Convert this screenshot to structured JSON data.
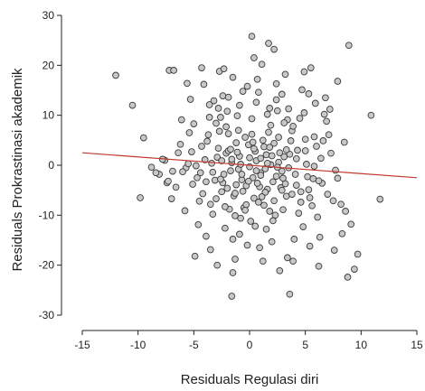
{
  "chart_data": {
    "type": "scatter",
    "title": "",
    "xlabel": "Residuals Regulasi diri",
    "ylabel": "Residuals Prokrastinasi akademik",
    "xlim": [
      -15,
      15
    ],
    "ylim": [
      -30,
      30
    ],
    "x_ticks": [
      "-15",
      "-10",
      "-5",
      "0",
      "5",
      "10",
      "15"
    ],
    "y_ticks": [
      "-30",
      "-20",
      "-10",
      "0",
      "10",
      "20",
      "30"
    ],
    "grid": false,
    "legend": "none",
    "point_fill": "#c8c8c8",
    "point_stroke": "#3a3a3a",
    "regression_line": {
      "x": [
        -15,
        15
      ],
      "y": [
        2.5,
        -2.5
      ],
      "color": "#c0392b"
    },
    "points": [
      [
        -12,
        18
      ],
      [
        -10.5,
        12
      ],
      [
        -9.5,
        5.5
      ],
      [
        -9.8,
        -6.5
      ],
      [
        -7.2,
        19
      ],
      [
        -6.8,
        19
      ],
      [
        -4.3,
        19.5
      ],
      [
        -2.7,
        18.8
      ],
      [
        -2.3,
        19.3
      ],
      [
        0.2,
        25.8
      ],
      [
        1.7,
        24.4
      ],
      [
        2.2,
        23.2
      ],
      [
        8.9,
        24
      ],
      [
        10.9,
        10
      ],
      [
        11.7,
        -6.8
      ],
      [
        -8.1,
        -1.8
      ],
      [
        -7.6,
        1
      ],
      [
        -7.4,
        -3.5
      ],
      [
        -6.9,
        -1.2
      ],
      [
        -6.4,
        2.5
      ],
      [
        -5.7,
        -0.5
      ],
      [
        -5.4,
        6.5
      ],
      [
        -5.1,
        -3.8
      ],
      [
        -4.9,
        -18.2
      ],
      [
        -4.6,
        -11.9
      ],
      [
        -4.1,
        16.2
      ],
      [
        -3.8,
        4.8
      ],
      [
        -3.5,
        -7.8
      ],
      [
        -3.2,
        12.9
      ],
      [
        -2.9,
        -20
      ],
      [
        -2.6,
        9.6
      ],
      [
        -2.4,
        -3.5
      ],
      [
        -2.1,
        2.4
      ],
      [
        -1.8,
        -8.8
      ],
      [
        -1.5,
        -14.8
      ],
      [
        -1.6,
        -26.2
      ],
      [
        -1.2,
        4.5
      ],
      [
        -1,
        7
      ],
      [
        -0.8,
        -10.6
      ],
      [
        -0.6,
        14.8
      ],
      [
        -0.3,
        -4.1
      ],
      [
        0,
        1.5
      ],
      [
        0.2,
        9.3
      ],
      [
        0.4,
        -6.6
      ],
      [
        0.7,
        17.2
      ],
      [
        1,
        -1.5
      ],
      [
        1.2,
        5
      ],
      [
        1.5,
        -12.8
      ],
      [
        1.8,
        11.4
      ],
      [
        2.1,
        -3.3
      ],
      [
        2.4,
        16.3
      ],
      [
        2.7,
        2.5
      ],
      [
        3,
        -8.9
      ],
      [
        3.2,
        18.2
      ],
      [
        3.5,
        -0.5
      ],
      [
        3.8,
        6.9
      ],
      [
        4,
        -14.8
      ],
      [
        3.6,
        -25.8
      ],
      [
        4.3,
        3
      ],
      [
        4.6,
        -5.3
      ],
      [
        4.9,
        10.5
      ],
      [
        5.2,
        -2.3
      ],
      [
        5.5,
        19.5
      ],
      [
        5.8,
        5.7
      ],
      [
        6.1,
        -10.4
      ],
      [
        6.4,
        1.4
      ],
      [
        6.7,
        10.2
      ],
      [
        7,
        -5.8
      ],
      [
        7.3,
        2.4
      ],
      [
        7.6,
        -17
      ],
      [
        7.9,
        16.8
      ],
      [
        8.2,
        -7.8
      ],
      [
        8.5,
        4.6
      ],
      [
        8.8,
        -22.4
      ],
      [
        9.1,
        -11.8
      ],
      [
        9.4,
        -20.8
      ],
      [
        9.7,
        -17.8
      ],
      [
        -5.3,
        13.2
      ],
      [
        -4.4,
        -1.5
      ],
      [
        -3.9,
        -14.2
      ],
      [
        -3.4,
        0.4
      ],
      [
        -3,
        8.4
      ],
      [
        -2.5,
        -5.3
      ],
      [
        -2,
        10.8
      ],
      [
        -1.7,
        -1.1
      ],
      [
        -1.3,
        -18.8
      ],
      [
        -0.9,
        1.8
      ],
      [
        -0.5,
        -8.5
      ],
      [
        -0.1,
        4.1
      ],
      [
        0.3,
        -2.5
      ],
      [
        0.6,
        12.6
      ],
      [
        0.9,
        -16.5
      ],
      [
        1.3,
        3.7
      ],
      [
        1.6,
        -4.8
      ],
      [
        1.9,
        8
      ],
      [
        2.3,
        -10
      ],
      [
        2.6,
        0.6
      ],
      [
        2.9,
        14.2
      ],
      [
        3.3,
        -6.2
      ],
      [
        3.7,
        4.9
      ],
      [
        4.1,
        -1.8
      ],
      [
        4.5,
        9.4
      ],
      [
        4.8,
        -12.3
      ],
      [
        5.1,
        0.2
      ],
      [
        5.6,
        -8.1
      ],
      [
        6,
        3.8
      ],
      [
        6.5,
        -3.6
      ],
      [
        7.1,
        6.1
      ],
      [
        7.7,
        -1
      ],
      [
        8.3,
        -13.7
      ],
      [
        -6.2,
        4.2
      ],
      [
        -5.8,
        -9.1
      ],
      [
        -5,
        8.3
      ],
      [
        -4.2,
        -5.7
      ],
      [
        -3.6,
        12.1
      ],
      [
        -3.1,
        -3
      ],
      [
        -2.8,
        3.4
      ],
      [
        -2.2,
        -12.6
      ],
      [
        -1.9,
        6.3
      ],
      [
        -1.4,
        -6.1
      ],
      [
        -1.1,
        9.9
      ],
      [
        -0.7,
        -2.9
      ],
      [
        -0.2,
        15.8
      ],
      [
        0.1,
        -11.2
      ],
      [
        0.5,
        2.8
      ],
      [
        0.8,
        -7.4
      ],
      [
        1.1,
        20.2
      ],
      [
        1.4,
        -0.7
      ],
      [
        1.7,
        6.6
      ],
      [
        2,
        -15.3
      ],
      [
        2.5,
        10.9
      ],
      [
        2.8,
        -4.5
      ],
      [
        3.1,
        1.7
      ],
      [
        3.4,
        -18.5
      ],
      [
        3.9,
        7.8
      ],
      [
        4.4,
        -9.6
      ],
      [
        4.7,
        15.1
      ],
      [
        5.3,
        -4.9
      ],
      [
        5.9,
        12.4
      ],
      [
        6.3,
        -14.4
      ],
      [
        6.9,
        8.8
      ],
      [
        7.5,
        -7.1
      ],
      [
        -4,
        1.1
      ],
      [
        -3.3,
        -9.8
      ],
      [
        -2.7,
        6.8
      ],
      [
        -2.3,
        -1.8
      ],
      [
        -1.6,
        0.5
      ],
      [
        -1.2,
        -3.9
      ],
      [
        -0.4,
        5.6
      ],
      [
        0,
        -0.3
      ],
      [
        0.4,
        3.3
      ],
      [
        1,
        -2
      ],
      [
        1.8,
        -9.2
      ],
      [
        2.2,
        4.4
      ],
      [
        2.9,
        -1.2
      ],
      [
        3.6,
        2.2
      ],
      [
        4.2,
        -4
      ],
      [
        5,
        5.2
      ],
      [
        5.7,
        -2.7
      ],
      [
        -6.6,
        -4.4
      ],
      [
        -7.8,
        1.2
      ],
      [
        -8.4,
        -1.5
      ],
      [
        -1.9,
        2.9
      ],
      [
        -0.6,
        -5.2
      ],
      [
        0.6,
        0.9
      ],
      [
        1.5,
        2.1
      ],
      [
        2.4,
        -2.2
      ],
      [
        3.2,
        -3.7
      ],
      [
        -5.5,
        0.3
      ],
      [
        -4.7,
        -2.5
      ],
      [
        -2.9,
        1.6
      ],
      [
        -1,
        -0.8
      ],
      [
        0.9,
        -4.3
      ],
      [
        1.9,
        0.1
      ],
      [
        3.5,
        11.3
      ],
      [
        4.9,
        18.7
      ],
      [
        5.4,
        -16.2
      ],
      [
        6.8,
        13.5
      ],
      [
        -1.5,
        17.6
      ],
      [
        0.4,
        21.5
      ],
      [
        -0.9,
        -13.8
      ],
      [
        1.2,
        -19.2
      ],
      [
        2.7,
        -21.1
      ],
      [
        -3.5,
        -16.9
      ],
      [
        -2.4,
        13.9
      ],
      [
        6.2,
        -20.2
      ],
      [
        -8.8,
        -0.4
      ],
      [
        -7,
        -6.7
      ],
      [
        -6,
        -1.3
      ],
      [
        -5.2,
        2.7
      ],
      [
        -4.5,
        -7.2
      ],
      [
        -3.7,
        6.1
      ],
      [
        -3.3,
        -1.4
      ],
      [
        -2.6,
        -2.8
      ],
      [
        -2.1,
        7.7
      ],
      [
        -1.7,
        3.2
      ],
      [
        -1.3,
        -5.6
      ],
      [
        -0.8,
        0.2
      ],
      [
        -0.3,
        -7.9
      ],
      [
        0.2,
        6.2
      ],
      [
        0.6,
        -1.1
      ],
      [
        1,
        1.4
      ],
      [
        1.4,
        -5.4
      ],
      [
        1.8,
        3.6
      ],
      [
        2.2,
        -7.1
      ],
      [
        2.6,
        5.6
      ],
      [
        3,
        -2.6
      ],
      [
        3.4,
        9.1
      ],
      [
        3.8,
        -5.8
      ],
      [
        4.2,
        1.3
      ],
      [
        4.6,
        -7.4
      ],
      [
        5,
        2.9
      ],
      [
        5.4,
        -6.5
      ],
      [
        5.8,
        -0.2
      ],
      [
        6.2,
        -3.1
      ],
      [
        6.6,
        4.9
      ],
      [
        -4.8,
        -0.1
      ],
      [
        -4.3,
        3.8
      ],
      [
        -3.9,
        -3.3
      ],
      [
        -3,
        -6.7
      ],
      [
        -2.5,
        0.9
      ],
      [
        -2,
        -4.6
      ],
      [
        -1.6,
        1.2
      ],
      [
        -1.1,
        2.6
      ],
      [
        -0.7,
        -1.8
      ],
      [
        -0.1,
        -3.2
      ],
      [
        0.3,
        4.6
      ],
      [
        0.7,
        -3.6
      ],
      [
        1.1,
        -6.3
      ],
      [
        1.6,
        0.4
      ],
      [
        2,
        1.9
      ],
      [
        2.5,
        -0.4
      ],
      [
        2.9,
        -5
      ],
      [
        3.3,
        3.1
      ],
      [
        -2.2,
        -8.3
      ],
      [
        -1.3,
        -10.1
      ],
      [
        -0.4,
        -9
      ],
      [
        0.5,
        -12.2
      ],
      [
        1.3,
        -8
      ],
      [
        2.1,
        -11.1
      ],
      [
        -3.6,
        9.6
      ],
      [
        -2.8,
        11.4
      ],
      [
        -1.9,
        13.6
      ],
      [
        -0.9,
        12
      ],
      [
        0.8,
        14.6
      ],
      [
        1.6,
        10.2
      ],
      [
        2.4,
        13.1
      ],
      [
        3.1,
        8.5
      ],
      [
        -6.1,
        9.1
      ],
      [
        -5.6,
        16.4
      ],
      [
        5.3,
        14.3
      ],
      [
        7.2,
        11.2
      ],
      [
        -7.3,
        -3.2
      ],
      [
        7.9,
        -2.6
      ],
      [
        8.6,
        -9.2
      ],
      [
        -0.2,
        -16
      ],
      [
        3.9,
        -19.2
      ],
      [
        -1.5,
        -21.5
      ]
    ]
  }
}
